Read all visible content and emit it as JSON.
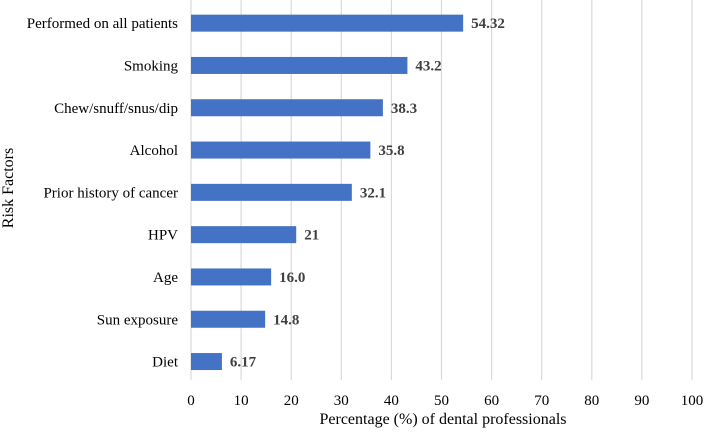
{
  "chart_data": {
    "type": "bar",
    "orientation": "horizontal",
    "categories": [
      "Performed on all patients",
      "Smoking",
      "Chew/snuff/snus/dip",
      "Alcohol",
      "Prior history of cancer",
      "HPV",
      "Age",
      "Sun exposure",
      "Diet"
    ],
    "values": [
      54.32,
      43.2,
      38.3,
      35.8,
      32.1,
      21,
      16.0,
      14.8,
      6.17
    ],
    "data_labels": [
      "54.32",
      "43.2",
      "38.3",
      "35.8",
      "32.1",
      "21",
      "16.0",
      "14.8",
      "6.17"
    ],
    "title": "",
    "xlabel": "Percentage (%) of dental professionals",
    "ylabel": "Risk Factors",
    "xlim": [
      0,
      100
    ],
    "xticks": [
      0,
      10,
      20,
      30,
      40,
      50,
      60,
      70,
      80,
      90,
      100
    ],
    "xtick_labels": [
      "0",
      "10",
      "20",
      "30",
      "40",
      "50",
      "60",
      "70",
      "80",
      "90",
      "100"
    ],
    "grid": true,
    "bar_color": "#4472c4",
    "grid_color": "#d9d9d9"
  }
}
